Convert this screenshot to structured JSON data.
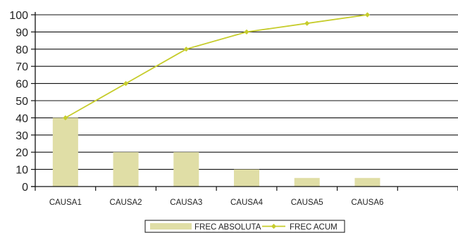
{
  "chart_data": {
    "type": "bar",
    "categories": [
      "CAUSA1",
      "CAUSA2",
      "CAUSA3",
      "CAUSA4",
      "CAUSA5",
      "CAUSA6"
    ],
    "series": [
      {
        "name": "FREC ABSOLUTA",
        "type": "bar",
        "values": [
          40,
          20,
          20,
          10,
          5,
          5
        ],
        "color": "#e0dea6"
      },
      {
        "name": "FREC ACUM",
        "type": "line",
        "values": [
          40,
          60,
          80,
          90,
          95,
          100
        ],
        "color": "#c6cc2b"
      }
    ],
    "y_ticks": [
      "0",
      "10",
      "20",
      "30",
      "40",
      "50",
      "60",
      "70",
      "80",
      "90",
      "100"
    ],
    "ylim": [
      0,
      100
    ],
    "grid": true,
    "legend_position": "bottom",
    "colors": {
      "grid": "#111111",
      "axis": "#111111",
      "text": "#222222"
    }
  }
}
